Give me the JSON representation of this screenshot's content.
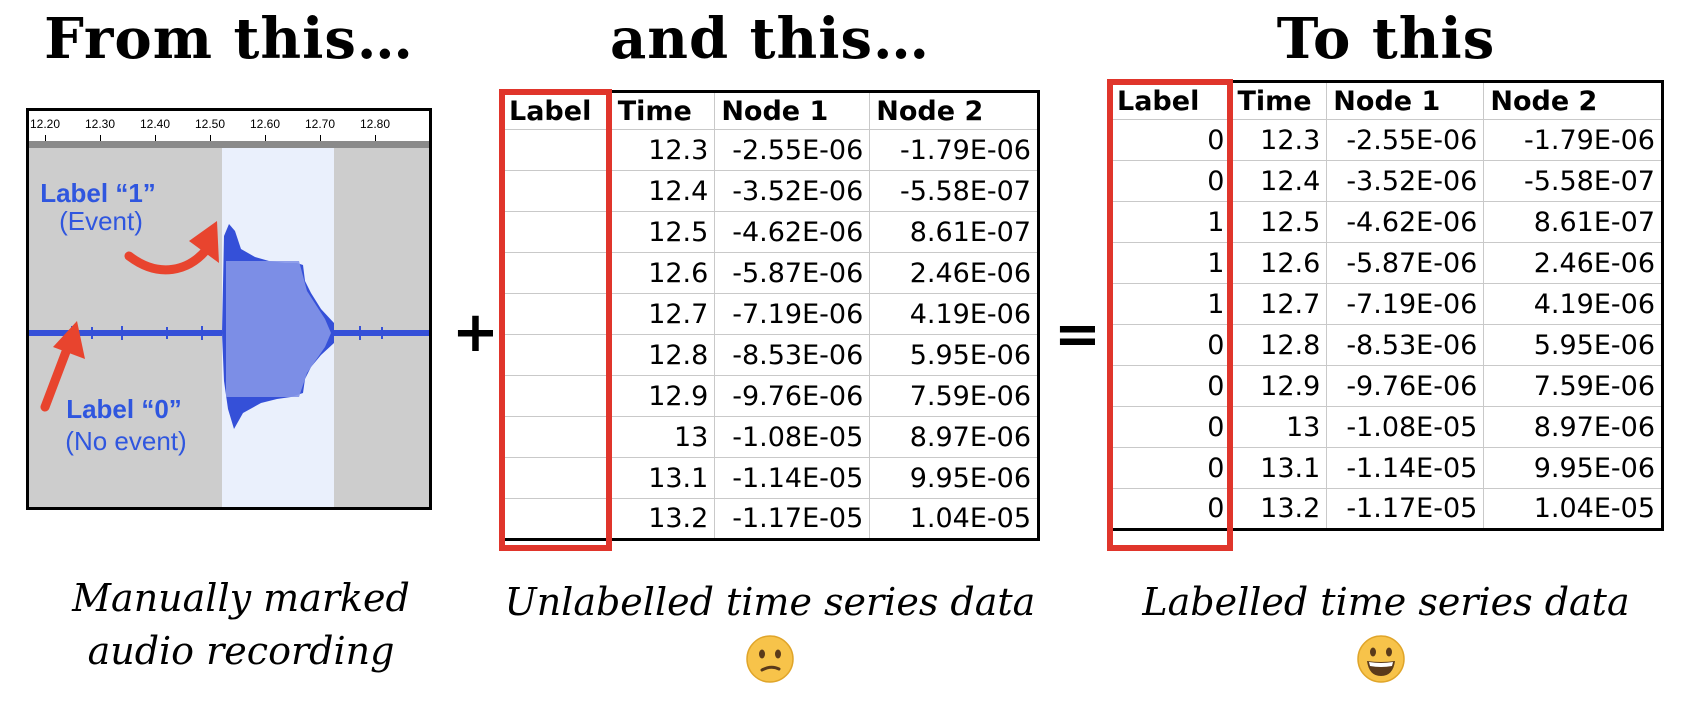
{
  "headings": {
    "left": "From this…",
    "middle": "and this…",
    "right": "To this"
  },
  "operators": {
    "plus": "+",
    "equals": "="
  },
  "audio": {
    "ruler_ticks": [
      "12.20",
      "12.30",
      "12.40",
      "12.50",
      "12.60",
      "12.70",
      "12.80"
    ],
    "label_event_title": "Label “1”",
    "label_event_sub": "(Event)",
    "label_noevent_title": "Label “0”",
    "label_noevent_sub": "(No event)",
    "colors": {
      "waveform": "#3550d8",
      "arrow": "#e8442e",
      "highlight": "#eaf0fc",
      "background": "#cdcdcd",
      "label": "#2f56df"
    }
  },
  "captions": {
    "left_line1": "Manually marked",
    "left_line2": "audio recording",
    "middle": "Unlabelled time series data",
    "right": "Labelled time series data"
  },
  "emojis": {
    "middle": "confused-face",
    "right": "grinning-face"
  },
  "tables": {
    "headers": [
      "Label",
      "Time",
      "Node 1",
      "Node 2"
    ],
    "unlabelled": [
      [
        "",
        "12.3",
        "-2.55E-06",
        "-1.79E-06"
      ],
      [
        "",
        "12.4",
        "-3.52E-06",
        "-5.58E-07"
      ],
      [
        "",
        "12.5",
        "-4.62E-06",
        "8.61E-07"
      ],
      [
        "",
        "12.6",
        "-5.87E-06",
        "2.46E-06"
      ],
      [
        "",
        "12.7",
        "-7.19E-06",
        "4.19E-06"
      ],
      [
        "",
        "12.8",
        "-8.53E-06",
        "5.95E-06"
      ],
      [
        "",
        "12.9",
        "-9.76E-06",
        "7.59E-06"
      ],
      [
        "",
        "13",
        "-1.08E-05",
        "8.97E-06"
      ],
      [
        "",
        "13.1",
        "-1.14E-05",
        "9.95E-06"
      ],
      [
        "",
        "13.2",
        "-1.17E-05",
        "1.04E-05"
      ]
    ],
    "labelled": [
      [
        "0",
        "12.3",
        "-2.55E-06",
        "-1.79E-06"
      ],
      [
        "0",
        "12.4",
        "-3.52E-06",
        "-5.58E-07"
      ],
      [
        "1",
        "12.5",
        "-4.62E-06",
        "8.61E-07"
      ],
      [
        "1",
        "12.6",
        "-5.87E-06",
        "2.46E-06"
      ],
      [
        "1",
        "12.7",
        "-7.19E-06",
        "4.19E-06"
      ],
      [
        "0",
        "12.8",
        "-8.53E-06",
        "5.95E-06"
      ],
      [
        "0",
        "12.9",
        "-9.76E-06",
        "7.59E-06"
      ],
      [
        "0",
        "13",
        "-1.08E-05",
        "8.97E-06"
      ],
      [
        "0",
        "13.1",
        "-1.14E-05",
        "9.95E-06"
      ],
      [
        "0",
        "13.2",
        "-1.17E-05",
        "1.04E-05"
      ]
    ],
    "highlight_color": "#e0352b"
  }
}
